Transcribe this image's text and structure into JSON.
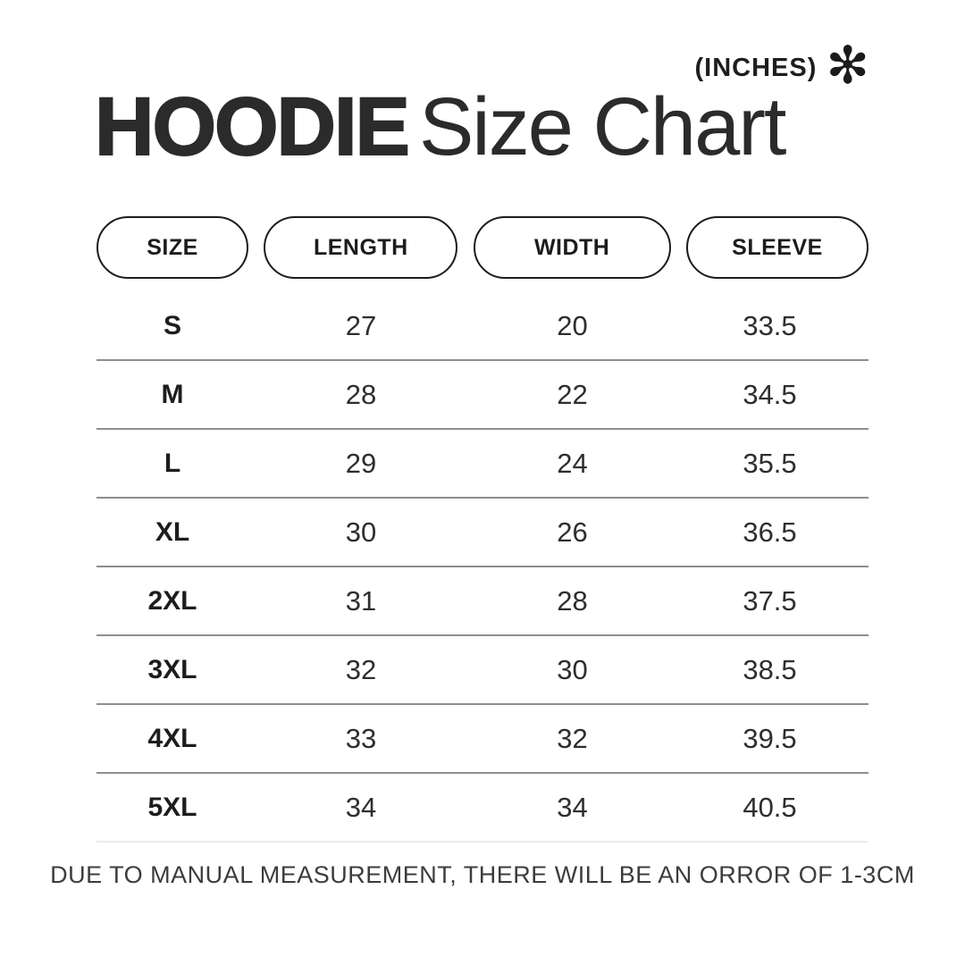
{
  "header": {
    "units_label": "(INCHES)",
    "asterisk_glyph": "✻",
    "title_bold": "HOODIE",
    "title_regular": "Size Chart"
  },
  "chart_data": {
    "type": "table",
    "title": "HOODIE Size Chart",
    "units": "INCHES",
    "columns": [
      "SIZE",
      "LENGTH",
      "WIDTH",
      "SLEEVE"
    ],
    "rows": [
      [
        "S",
        27,
        20,
        33.5
      ],
      [
        "M",
        28,
        22,
        34.5
      ],
      [
        "L",
        29,
        24,
        35.5
      ],
      [
        "XL",
        30,
        26,
        36.5
      ],
      [
        "2XL",
        31,
        28,
        37.5
      ],
      [
        "3XL",
        32,
        30,
        38.5
      ],
      [
        "4XL",
        33,
        32,
        39.5
      ],
      [
        "5XL",
        34,
        34,
        40.5
      ]
    ]
  },
  "footer": {
    "note": "DUE TO MANUAL MEASUREMENT, THERE WILL BE AN ORROR OF 1-3CM"
  },
  "colors": {
    "text_primary": "#2b2b2b",
    "pill_border": "#1c1c1c",
    "divider": "#8e8e8e",
    "divider_light": "#ececec",
    "background": "#ffffff"
  }
}
